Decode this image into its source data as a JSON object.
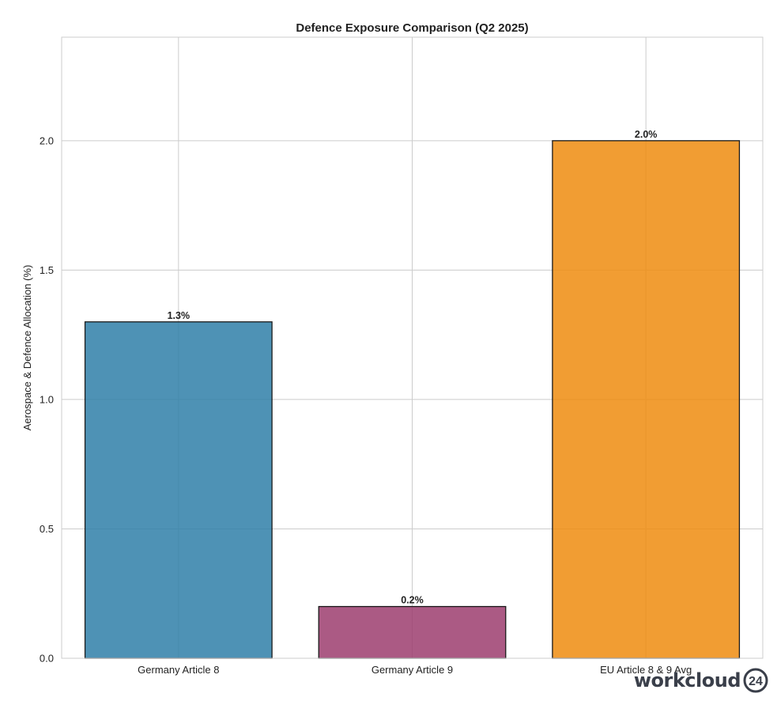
{
  "chart_data": {
    "type": "bar",
    "title": "Defence Exposure Comparison (Q2 2025)",
    "xlabel": "",
    "ylabel": "Aerospace & Defence Allocation (%)",
    "categories": [
      "Germany Article 8",
      "Germany Article 9",
      "EU Article 8 & 9 Avg"
    ],
    "values": [
      1.3,
      0.2,
      2.0
    ],
    "value_labels": [
      "1.3%",
      "0.2%",
      "2.0%"
    ],
    "colors": [
      "#2f7fa8",
      "#9c3d6f",
      "#ee8c0f"
    ],
    "bar_opacity": 0.85,
    "ylim": [
      0,
      2.4
    ],
    "yticks": [
      0.0,
      0.5,
      1.0,
      1.5,
      2.0
    ],
    "ytick_labels": [
      "0.0",
      "0.5",
      "1.0",
      "1.5",
      "2.0"
    ],
    "grid": true
  },
  "watermark": {
    "text": "workcloud",
    "badge": "24"
  }
}
